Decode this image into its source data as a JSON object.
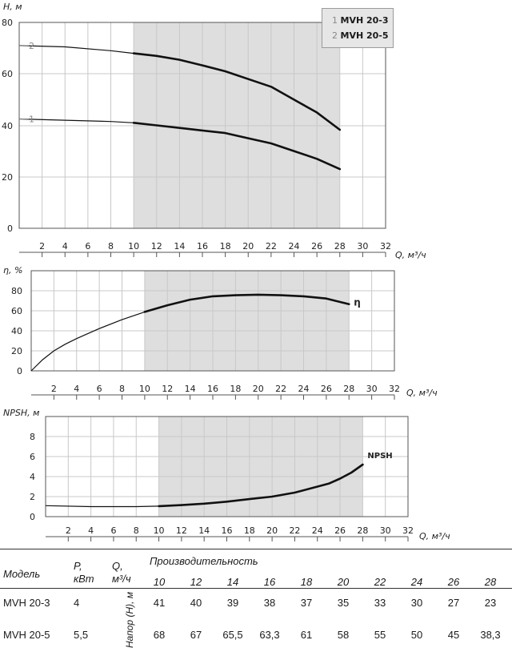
{
  "chart_data": [
    {
      "type": "line",
      "ylabel": "H, м",
      "xlabel": "Q, м³/ч",
      "xlim": [
        0,
        32
      ],
      "ylim": [
        0,
        80
      ],
      "x_ticks": [
        "2",
        "4",
        "6",
        "8",
        "10",
        "12",
        "14",
        "16",
        "18",
        "20",
        "22",
        "24",
        "26",
        "28",
        "30",
        "32"
      ],
      "y_ticks": [
        "0",
        "20",
        "40",
        "60",
        "80"
      ],
      "shaded_range": [
        10,
        28
      ],
      "series": [
        {
          "label": "1",
          "points": [
            [
              0,
              42.5
            ],
            [
              4,
              42
            ],
            [
              8,
              41.5
            ],
            [
              10,
              41
            ],
            [
              12,
              40
            ],
            [
              14,
              39
            ],
            [
              16,
              38
            ],
            [
              18,
              37
            ],
            [
              20,
              35
            ],
            [
              22,
              33
            ],
            [
              24,
              30
            ],
            [
              26,
              27
            ],
            [
              28,
              23
            ]
          ]
        },
        {
          "label": "2",
          "points": [
            [
              0,
              71
            ],
            [
              4,
              70.5
            ],
            [
              8,
              69
            ],
            [
              10,
              68
            ],
            [
              12,
              67
            ],
            [
              14,
              65.5
            ],
            [
              16,
              63.3
            ],
            [
              18,
              61
            ],
            [
              20,
              58
            ],
            [
              22,
              55
            ],
            [
              24,
              50
            ],
            [
              26,
              45
            ],
            [
              28,
              38.3
            ]
          ]
        }
      ]
    },
    {
      "type": "line",
      "ylabel": "η, %",
      "xlabel": "Q, м³/ч",
      "xlim": [
        0,
        32
      ],
      "ylim": [
        0,
        90
      ],
      "x_ticks": [
        "2",
        "4",
        "6",
        "8",
        "10",
        "12",
        "14",
        "16",
        "18",
        "20",
        "22",
        "24",
        "26",
        "28",
        "30",
        "32"
      ],
      "y_ticks": [
        "0",
        "20",
        "40",
        "60",
        "80"
      ],
      "shaded_range": [
        10,
        28
      ],
      "series": [
        {
          "label": "η",
          "points": [
            [
              0,
              0
            ],
            [
              1,
              10
            ],
            [
              2,
              18
            ],
            [
              3,
              24
            ],
            [
              4,
              29
            ],
            [
              6,
              38
            ],
            [
              8,
              46
            ],
            [
              10,
              53
            ],
            [
              12,
              59
            ],
            [
              14,
              64
            ],
            [
              16,
              67
            ],
            [
              18,
              68
            ],
            [
              20,
              68.5
            ],
            [
              22,
              68
            ],
            [
              24,
              67
            ],
            [
              26,
              65
            ],
            [
              28,
              60
            ]
          ]
        }
      ]
    },
    {
      "type": "line",
      "ylabel": "NPSH, м",
      "xlabel": "Q, м³/ч",
      "xlim": [
        0,
        32
      ],
      "ylim": [
        0,
        10
      ],
      "x_ticks": [
        "2",
        "4",
        "6",
        "8",
        "10",
        "12",
        "14",
        "16",
        "18",
        "20",
        "22",
        "24",
        "26",
        "28",
        "30",
        "32"
      ],
      "y_ticks": [
        "0",
        "2",
        "4",
        "6",
        "8"
      ],
      "shaded_range": [
        10,
        28
      ],
      "series": [
        {
          "label": "NPSH",
          "points": [
            [
              0,
              1.1
            ],
            [
              4,
              1.0
            ],
            [
              8,
              1.0
            ],
            [
              10,
              1.05
            ],
            [
              12,
              1.15
            ],
            [
              14,
              1.3
            ],
            [
              16,
              1.5
            ],
            [
              18,
              1.75
            ],
            [
              20,
              2.0
            ],
            [
              22,
              2.4
            ],
            [
              24,
              3.0
            ],
            [
              25,
              3.3
            ],
            [
              26,
              3.8
            ],
            [
              27,
              4.4
            ],
            [
              28,
              5.2
            ]
          ]
        }
      ]
    }
  ],
  "legend": [
    {
      "num": "1",
      "name": "MVH 20-3"
    },
    {
      "num": "2",
      "name": "MVH 20-5"
    }
  ],
  "table": {
    "col_model": "Модель",
    "col_power": "P,",
    "col_power_unit": "кВт",
    "col_q": "Q,",
    "col_q_unit": "м³/ч",
    "col_perf": "Производительность",
    "head_label": "Напор (H), м",
    "flows": [
      "10",
      "12",
      "14",
      "16",
      "18",
      "20",
      "22",
      "24",
      "26",
      "28"
    ],
    "rows": [
      {
        "model": "MVH 20-3",
        "power": "4",
        "values": [
          "41",
          "40",
          "39",
          "38",
          "37",
          "35",
          "33",
          "30",
          "27",
          "23"
        ]
      },
      {
        "model": "MVH 20-5",
        "power": "5,5",
        "values": [
          "68",
          "67",
          "65,5",
          "63,3",
          "61",
          "58",
          "55",
          "50",
          "45",
          "38,3"
        ]
      }
    ]
  },
  "colors": {
    "shade": "#dedede",
    "grid": "#c8c8c8",
    "line": "#111111",
    "axis": "#555555"
  }
}
